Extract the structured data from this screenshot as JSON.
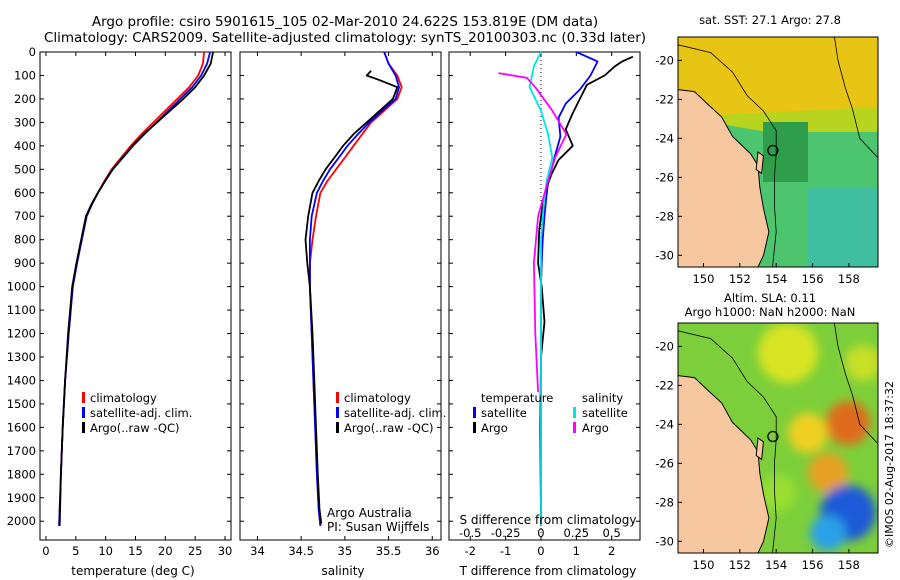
{
  "title_line1": "Argo profile: csiro 5901615_105 02-Mar-2010 24.622S 153.819E (DM data)",
  "title_line2": "Climatology: CARS2009. Satellite-adjusted climatology: synTS_20100303.nc (0.33d later)",
  "credit": "©IMOS 02-Aug-2017 18:37:32",
  "colors": {
    "clim": "#ff0000",
    "sat": "#0000ff",
    "argo": "#000000",
    "sal_sat": "#00e5e5",
    "sal_argo": "#ff00ff",
    "land": "#f7c8a0"
  },
  "chart_data": [
    {
      "id": "temperature",
      "type": "line",
      "xlabel": "temperature (deg C)",
      "ylabel": "",
      "xlim": [
        -1,
        31
      ],
      "ylim": [
        2080,
        0
      ],
      "xticks": [
        "0",
        "5",
        "10",
        "15",
        "20",
        "25",
        "30"
      ],
      "xtick_values": [
        0,
        5,
        10,
        15,
        20,
        25,
        30
      ],
      "yticks": [
        "0",
        "100",
        "200",
        "300",
        "400",
        "500",
        "600",
        "700",
        "800",
        "900",
        "1000",
        "1100",
        "1200",
        "1300",
        "1400",
        "1500",
        "1600",
        "1700",
        "1800",
        "1900",
        "2000"
      ],
      "ytick_values": [
        0,
        100,
        200,
        300,
        400,
        500,
        600,
        700,
        800,
        900,
        1000,
        1100,
        1200,
        1300,
        1400,
        1500,
        1600,
        1700,
        1800,
        1900,
        2000
      ],
      "legend": [
        "climatology",
        "satellite-adj. clim.",
        "Argo(..raw -QC)"
      ],
      "series": [
        {
          "name": "climatology",
          "x": [
            26.5,
            26.3,
            25.5,
            24,
            22,
            20,
            18,
            16,
            14.2,
            12.6,
            11,
            9.8,
            8.7,
            7.7,
            6.8,
            6,
            5.2,
            4.5,
            3.8,
            3.2,
            2.8,
            2.5,
            2.2
          ],
          "y": [
            0,
            50,
            100,
            150,
            200,
            250,
            300,
            350,
            400,
            450,
            500,
            550,
            600,
            650,
            700,
            800,
            900,
            1000,
            1200,
            1400,
            1600,
            1800,
            2020
          ]
        },
        {
          "name": "satellite-adj. clim.",
          "x": [
            27.5,
            27,
            26,
            24.5,
            22.5,
            20.5,
            18.5,
            16.5,
            14.6,
            12.9,
            11.2,
            9.9,
            8.7,
            7.7,
            6.8,
            6,
            5.2,
            4.5,
            3.8,
            3.2,
            2.8,
            2.5,
            2.2
          ],
          "y": [
            0,
            50,
            100,
            150,
            200,
            250,
            300,
            350,
            400,
            450,
            500,
            550,
            600,
            650,
            700,
            800,
            900,
            1000,
            1200,
            1400,
            1600,
            1800,
            2020
          ]
        },
        {
          "name": "Argo(..raw -QC)",
          "x": [
            28,
            27.6,
            26.5,
            25,
            23,
            20.8,
            18.6,
            16.4,
            14.5,
            12.8,
            11.2,
            9.9,
            8.7,
            7.6,
            6.7,
            5.9,
            5.1,
            4.4,
            3.7,
            3.2,
            2.8,
            2.5,
            2.3
          ],
          "y": [
            0,
            50,
            100,
            150,
            200,
            250,
            300,
            350,
            400,
            450,
            500,
            550,
            600,
            650,
            700,
            800,
            900,
            1000,
            1200,
            1400,
            1600,
            1800,
            2020
          ]
        }
      ]
    },
    {
      "id": "salinity",
      "type": "line",
      "xlabel": "salinity",
      "xlim": [
        33.8,
        36.1
      ],
      "ylim": [
        2080,
        0
      ],
      "xticks": [
        "34",
        "34.5",
        "35",
        "35.5",
        "36"
      ],
      "xtick_values": [
        34,
        34.5,
        35,
        35.5,
        36
      ],
      "legend": [
        "climatology",
        "satellite-adj. clim.",
        "Argo(..raw -QC)"
      ],
      "annotation": [
        "Argo Australia",
        "PI: Susan Wijffels"
      ],
      "series": [
        {
          "name": "climatology",
          "x": [
            35.45,
            35.5,
            35.6,
            35.65,
            35.6,
            35.45,
            35.3,
            35.2,
            35.1,
            35.0,
            34.9,
            34.8,
            34.72,
            34.67,
            34.63,
            34.6,
            34.6,
            34.62,
            34.64,
            34.66,
            34.68,
            34.7,
            34.72
          ],
          "y": [
            0,
            50,
            100,
            150,
            200,
            250,
            300,
            350,
            400,
            450,
            500,
            550,
            600,
            700,
            800,
            900,
            1000,
            1200,
            1400,
            1600,
            1800,
            1950,
            2020
          ]
        },
        {
          "name": "satellite-adj. clim.",
          "x": [
            35.45,
            35.5,
            35.58,
            35.62,
            35.58,
            35.43,
            35.28,
            35.15,
            35.03,
            34.93,
            34.83,
            34.75,
            34.68,
            34.62,
            34.6,
            34.6,
            34.6,
            34.62,
            34.64,
            34.66,
            34.68,
            34.7,
            34.72
          ],
          "y": [
            0,
            50,
            100,
            150,
            200,
            250,
            300,
            350,
            400,
            450,
            500,
            550,
            600,
            700,
            800,
            900,
            1000,
            1200,
            1400,
            1600,
            1800,
            1950,
            2020
          ]
        },
        {
          "name": "Argo(..raw -QC)",
          "x": [
            35.3,
            35.25,
            35.4,
            35.6,
            35.55,
            35.4,
            35.25,
            35.1,
            34.98,
            34.88,
            34.78,
            34.7,
            34.63,
            34.58,
            34.55,
            34.57,
            34.6,
            34.63,
            34.65,
            34.67,
            34.69,
            34.71,
            34.73
          ],
          "y": [
            80,
            100,
            120,
            150,
            200,
            250,
            300,
            350,
            400,
            450,
            500,
            550,
            600,
            700,
            800,
            900,
            1000,
            1200,
            1400,
            1600,
            1800,
            1950,
            2010
          ]
        }
      ]
    },
    {
      "id": "differences",
      "type": "line",
      "xlabel": "T difference from climatology",
      "xlabel_top": "S difference from climatology",
      "xlim": [
        -2.6,
        2.8
      ],
      "ylim": [
        2080,
        0
      ],
      "xticks": [
        "-2",
        "-1",
        "0",
        "1",
        "2"
      ],
      "xtick_values": [
        -2,
        -1,
        0,
        1,
        2
      ],
      "sticks": [
        "-0.5",
        "-0.25",
        "0",
        "0.25",
        "0.5"
      ],
      "stick_values": [
        -0.5,
        -0.25,
        0,
        0.25,
        0.5
      ],
      "legend_t_title": "temperature",
      "legend_s_title": "salinity",
      "legend_t": [
        "satellite",
        "Argo"
      ],
      "legend_s": [
        "satellite",
        "Argo"
      ],
      "series": [
        {
          "name": "temperature satellite",
          "scale": "T",
          "x": [
            1,
            1.6,
            1.4,
            1.1,
            0.7,
            0.5,
            0.55,
            0.4,
            0.3,
            0.2,
            0.15,
            0.1,
            0.05,
            0.02,
            0,
            0,
            0,
            0,
            0
          ],
          "y": [
            0,
            40,
            100,
            160,
            220,
            280,
            360,
            440,
            500,
            560,
            620,
            700,
            800,
            900,
            1000,
            1200,
            1500,
            1800,
            2020
          ]
        },
        {
          "name": "temperature Argo",
          "scale": "T",
          "x": [
            2.6,
            2.3,
            2.1,
            1.8,
            1.3,
            1.1,
            0.9,
            0.7,
            0.9,
            0.5,
            0.3,
            0.15,
            0.05,
            -0.05,
            -0.08,
            0.02,
            0.1,
            0,
            -0.02,
            0
          ],
          "y": [
            20,
            40,
            60,
            100,
            140,
            200,
            260,
            330,
            400,
            460,
            520,
            580,
            650,
            760,
            900,
            1000,
            1150,
            1300,
            1600,
            2010
          ]
        },
        {
          "name": "salinity satellite",
          "scale": "S",
          "x": [
            0,
            -0.05,
            -0.08,
            0,
            0.05,
            0.08,
            0.04,
            0.02,
            0,
            0,
            0,
            0
          ],
          "y": [
            0,
            60,
            150,
            250,
            350,
            450,
            550,
            650,
            800,
            1200,
            1600,
            2020
          ]
        },
        {
          "name": "salinity Argo",
          "scale": "S",
          "x": [
            -0.3,
            -0.1,
            -0.04,
            0.08,
            0.18,
            0.1,
            0.05,
            -0.02,
            -0.05,
            -0.04,
            -0.02
          ],
          "y": [
            90,
            110,
            150,
            250,
            350,
            450,
            550,
            700,
            900,
            1200,
            1450
          ]
        }
      ]
    },
    {
      "id": "map_sst",
      "type": "heatmap",
      "title": "sat. SST: 27.1  Argo: 27.8",
      "xticks": [
        "150",
        "152",
        "154",
        "156",
        "158"
      ],
      "xtick_values": [
        150,
        152,
        154,
        156,
        158
      ],
      "yticks": [
        "-20",
        "-22",
        "-24",
        "-26",
        "-28",
        "-30"
      ],
      "ytick_values": [
        -20,
        -22,
        -24,
        -26,
        -28,
        -30
      ],
      "xlim": [
        148.6,
        159.6
      ],
      "ylim": [
        -30.6,
        -18.8
      ],
      "float_position": [
        153.819,
        -24.622
      ]
    },
    {
      "id": "map_sla",
      "type": "heatmap",
      "title_line1": "Altim. SLA: 0.11",
      "title_line2": "Argo h1000: NaN h2000: NaN",
      "xticks": [
        "150",
        "152",
        "154",
        "156",
        "158"
      ],
      "xtick_values": [
        150,
        152,
        154,
        156,
        158
      ],
      "yticks": [
        "-20",
        "-22",
        "-24",
        "-26",
        "-28",
        "-30"
      ],
      "ytick_values": [
        -20,
        -22,
        -24,
        -26,
        -28,
        -30
      ],
      "xlim": [
        148.6,
        159.6
      ],
      "ylim": [
        -30.6,
        -18.8
      ],
      "float_position": [
        153.819,
        -24.622
      ]
    }
  ]
}
